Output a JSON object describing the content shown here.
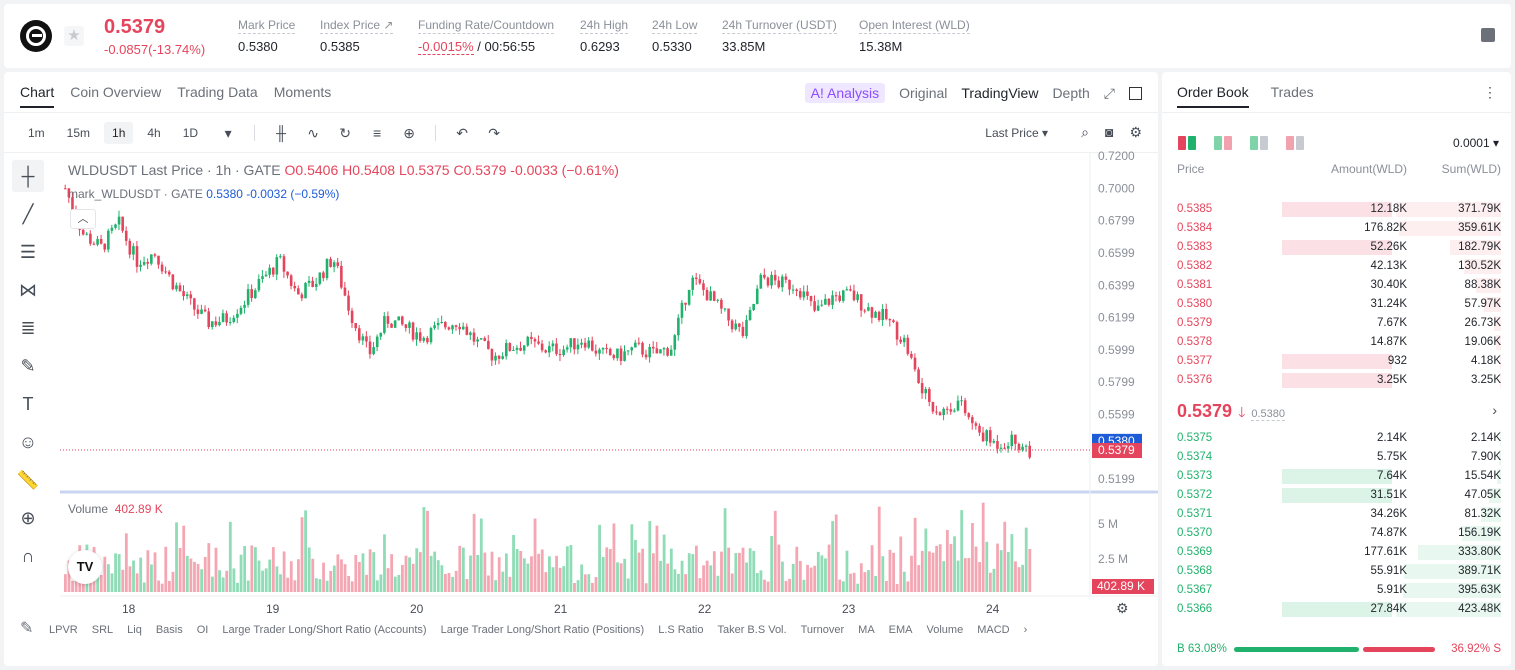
{
  "header": {
    "price": "0.5379",
    "change": "-0.0857(-13.74%)",
    "stats": [
      {
        "label": "Mark Price",
        "value": "0.5380",
        "red": false
      },
      {
        "label": "Index Price ↗",
        "value": "0.5385",
        "red": false
      },
      {
        "label": "Funding Rate/Countdown",
        "value": "-0.0015%",
        "value2": " / 00:56:55",
        "red": true
      },
      {
        "label": "24h High",
        "value": "0.6293",
        "red": false
      },
      {
        "label": "24h Low",
        "value": "0.5330",
        "red": false
      },
      {
        "label": "24h Turnover (USDT)",
        "value": "33.85M",
        "red": false
      },
      {
        "label": "Open Interest (WLD)",
        "value": "15.38M",
        "red": false
      }
    ]
  },
  "chart_tabs": {
    "chart": "Chart",
    "coin_overview": "Coin Overview",
    "trading_data": "Trading Data",
    "moments": "Moments"
  },
  "view_tabs": {
    "ai": "A! Analysis",
    "original": "Original",
    "tradingview": "TradingView",
    "depth": "Depth"
  },
  "toolbar": {
    "intervals": [
      "1m",
      "15m",
      "1h",
      "4h",
      "1D"
    ],
    "active_interval": "1h",
    "price_type": "Last Price"
  },
  "legend": {
    "title": "WLDUSDT Last Price · 1h · GATE",
    "o": "O0.5406",
    "h": "H0.5408",
    "l": "L0.5375",
    "c": "C0.5379",
    "chg": "-0.0033 (−0.61%)",
    "mark_prefix": "mark_WLDUSDT · GATE",
    "mark_value": "0.5380",
    "mark_chg": "-0.0032 (−0.59%)",
    "volume_label": "Volume",
    "volume_value": "402.89 K"
  },
  "chart_data": {
    "type": "candlestick",
    "price_axis": [
      "0.7200",
      "0.7000",
      "0.6799",
      "0.6599",
      "0.6399",
      "0.6199",
      "0.5999",
      "0.5799",
      "0.5599",
      "0.5399",
      "0.5199"
    ],
    "ylim": [
      0.5119,
      0.72
    ],
    "x_labels": [
      "18",
      "19",
      "20",
      "21",
      "22",
      "23",
      "24"
    ],
    "volume_axis": [
      "5 M",
      "2.5 M"
    ],
    "mark_price_tag": "0.5380",
    "last_price_tag": "0.5379",
    "volume_tag": "402.89 K",
    "close_path": [
      0.7,
      0.672,
      0.663,
      0.678,
      0.655,
      0.66,
      0.642,
      0.628,
      0.617,
      0.619,
      0.63,
      0.643,
      0.655,
      0.634,
      0.642,
      0.657,
      0.622,
      0.597,
      0.619,
      0.614,
      0.608,
      0.614,
      0.618,
      0.605,
      0.596,
      0.602,
      0.604,
      0.6,
      0.601,
      0.607,
      0.597,
      0.596,
      0.601,
      0.597,
      0.602,
      0.644,
      0.634,
      0.62,
      0.609,
      0.645,
      0.641,
      0.64,
      0.623,
      0.633,
      0.634,
      0.625,
      0.619,
      0.605,
      0.573,
      0.561,
      0.568,
      0.55,
      0.542,
      0.544,
      0.538
    ]
  },
  "indicators": [
    "LPVR",
    "SRL",
    "Liq",
    "Basis",
    "OI",
    "Large Trader Long/Short Ratio (Accounts)",
    "Large Trader Long/Short Ratio (Positions)",
    "L.S Ratio",
    "Taker B.S Vol.",
    "Turnover",
    "MA",
    "EMA",
    "Volume",
    "MACD"
  ],
  "orderbook": {
    "tabs": {
      "order_book": "Order Book",
      "trades": "Trades"
    },
    "precision": "0.0001",
    "headers": {
      "price": "Price",
      "amount": "Amount(WLD)",
      "sum": "Sum(WLD)"
    },
    "asks": [
      {
        "price": "0.5385",
        "amount": "12.18K",
        "sum": "371.79K",
        "amt_pct": 0.03,
        "sum_pct": 1.0
      },
      {
        "price": "0.5384",
        "amount": "176.82K",
        "sum": "359.61K",
        "amt_pct": 0.0,
        "sum_pct": 0.97
      },
      {
        "price": "0.5383",
        "amount": "52.26K",
        "sum": "182.79K",
        "amt_pct": 0.95,
        "sum_pct": 0.49
      },
      {
        "price": "0.5382",
        "amount": "42.13K",
        "sum": "130.52K",
        "amt_pct": 0.0,
        "sum_pct": 0.35
      },
      {
        "price": "0.5381",
        "amount": "30.40K",
        "sum": "88.38K",
        "amt_pct": 0.0,
        "sum_pct": 0.24
      },
      {
        "price": "0.5380",
        "amount": "31.24K",
        "sum": "57.97K",
        "amt_pct": 0.0,
        "sum_pct": 0.16
      },
      {
        "price": "0.5379",
        "amount": "7.67K",
        "sum": "26.73K",
        "amt_pct": 0.0,
        "sum_pct": 0.07
      },
      {
        "price": "0.5378",
        "amount": "14.87K",
        "sum": "19.06K",
        "amt_pct": 0.0,
        "sum_pct": 0.05
      },
      {
        "price": "0.5377",
        "amount": "932",
        "sum": "4.18K",
        "amt_pct": 0.95,
        "sum_pct": 0.01
      },
      {
        "price": "0.5376",
        "amount": "3.25K",
        "sum": "3.25K",
        "amt_pct": 0.95,
        "sum_pct": 0.01
      }
    ],
    "mid": {
      "price": "0.5379",
      "mark": "0.5380"
    },
    "bids": [
      {
        "price": "0.5375",
        "amount": "2.14K",
        "sum": "2.14K",
        "amt_pct": 0.0,
        "sum_pct": 0.01
      },
      {
        "price": "0.5374",
        "amount": "5.75K",
        "sum": "7.90K",
        "amt_pct": 0.0,
        "sum_pct": 0.02
      },
      {
        "price": "0.5373",
        "amount": "7.64K",
        "sum": "15.54K",
        "amt_pct": 0.95,
        "sum_pct": 0.04
      },
      {
        "price": "0.5372",
        "amount": "31.51K",
        "sum": "47.05K",
        "amt_pct": 0.95,
        "sum_pct": 0.11
      },
      {
        "price": "0.5371",
        "amount": "34.26K",
        "sum": "81.32K",
        "amt_pct": 0.0,
        "sum_pct": 0.19
      },
      {
        "price": "0.5370",
        "amount": "74.87K",
        "sum": "156.19K",
        "amt_pct": 0.0,
        "sum_pct": 0.37
      },
      {
        "price": "0.5369",
        "amount": "177.61K",
        "sum": "333.80K",
        "amt_pct": 0.0,
        "sum_pct": 0.79
      },
      {
        "price": "0.5368",
        "amount": "55.91K",
        "sum": "389.71K",
        "amt_pct": 0.0,
        "sum_pct": 0.92
      },
      {
        "price": "0.5367",
        "amount": "5.91K",
        "sum": "395.63K",
        "amt_pct": 0.0,
        "sum_pct": 0.93
      },
      {
        "price": "0.5366",
        "amount": "27.84K",
        "sum": "423.48K",
        "amt_pct": 0.95,
        "sum_pct": 1.0
      }
    ],
    "ratio": {
      "buy": "B 63.08%",
      "sell": "36.92% S",
      "buy_pct": 63.08
    }
  },
  "colors": {
    "up": "#20b26c",
    "down": "#e5455c",
    "mark": "#1e5bd6",
    "accent_ai": "#8b4dff"
  }
}
